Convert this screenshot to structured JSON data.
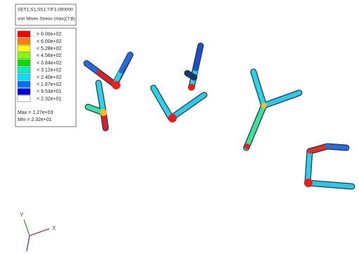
{
  "header": {
    "lines": [
      "SET1,S1,SS1,T/F1.000000",
      "von Mises Stress (max)(T.B)"
    ]
  },
  "legend": {
    "entries": [
      {
        "label": "> 6.00e+02",
        "color": "#ff0000"
      },
      {
        "label": "< 6.00e+02",
        "color": "#ff8000"
      },
      {
        "label": "< 5.28e+02",
        "color": "#ffff00"
      },
      {
        "label": "< 4.56e+02",
        "color": "#80ff00"
      },
      {
        "label": "< 3.84e+02",
        "color": "#00e000"
      },
      {
        "label": "< 3.12e+02",
        "color": "#00f0c0"
      },
      {
        "label": "< 2.40e+02",
        "color": "#00e0ff"
      },
      {
        "label": "< 1.67e+02",
        "color": "#0070ff"
      },
      {
        "label": "< 9.53e+01",
        "color": "#0000e0"
      },
      {
        "label": "< 2.32e+01",
        "color": "#ffffff"
      }
    ],
    "max": "Max = 1.27e+03",
    "min": "Min = 2.32e+01"
  },
  "triad": {
    "x": "X",
    "y": "Y"
  }
}
